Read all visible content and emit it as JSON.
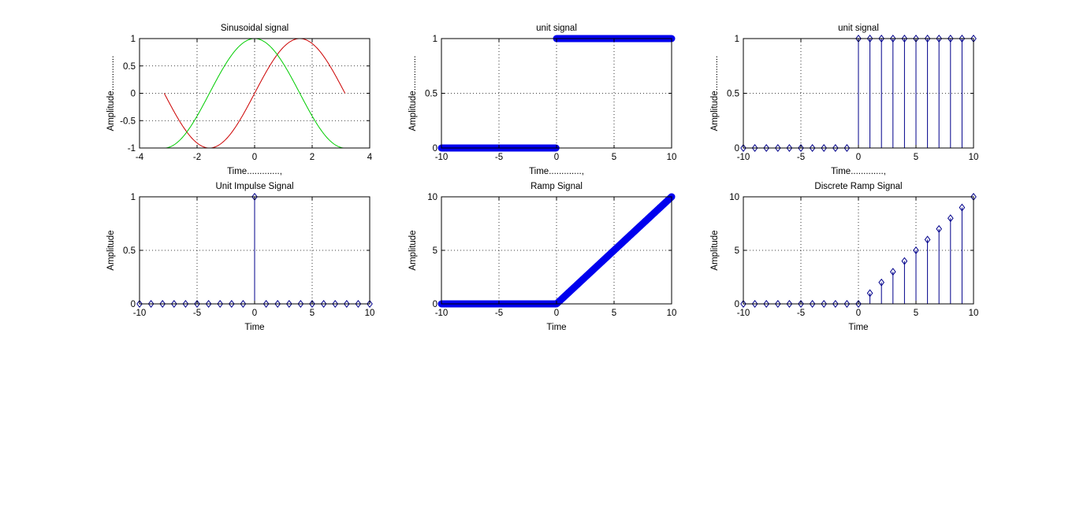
{
  "figure": {
    "background": "#ffffff",
    "axis_color": "#000000",
    "grid_color": "#000000"
  },
  "chart_data": [
    {
      "type": "line",
      "title": "Sinusoidal signal",
      "xlabel": "Time.............,",
      "ylabel": "Amplitude..............",
      "xlim": [
        -4,
        4
      ],
      "ylim": [
        -1,
        1
      ],
      "xticks": [
        -4,
        -2,
        0,
        2,
        4
      ],
      "yticks": [
        -1,
        -0.5,
        0,
        0.5,
        1
      ],
      "grid": true,
      "series": [
        {
          "function": "sin",
          "x_range": [
            -3.1416,
            3.1416
          ],
          "color": "#cc0000",
          "style": "line"
        },
        {
          "function": "cos",
          "x_range": [
            -3.1416,
            3.1416
          ],
          "color": "#00cc00",
          "style": "line"
        }
      ]
    },
    {
      "type": "line",
      "title": "unit signal",
      "xlabel": "Time.............,",
      "ylabel": "Amplitude..............",
      "xlim": [
        -10,
        10
      ],
      "ylim": [
        0,
        1
      ],
      "xticks": [
        -10,
        -5,
        0,
        5,
        10
      ],
      "yticks": [
        0,
        0.5,
        1
      ],
      "grid": true,
      "series": [
        {
          "function": "unit_step",
          "x_range": [
            -10,
            10
          ],
          "color": "#0000ee",
          "style": "dense_markers"
        }
      ]
    },
    {
      "type": "scatter",
      "title": "unit signal",
      "xlabel": "Time.............,",
      "ylabel": "Amplitude..............",
      "xlim": [
        -10,
        10
      ],
      "ylim": [
        0,
        1
      ],
      "xticks": [
        -10,
        -5,
        0,
        5,
        10
      ],
      "yticks": [
        0,
        0.5,
        1
      ],
      "grid": true,
      "series": [
        {
          "style": "stem",
          "color": "#00008b",
          "x": [
            -10,
            -9,
            -8,
            -7,
            -6,
            -5,
            -4,
            -3,
            -2,
            -1,
            0,
            1,
            2,
            3,
            4,
            5,
            6,
            7,
            8,
            9,
            10
          ],
          "y": [
            0,
            0,
            0,
            0,
            0,
            0,
            0,
            0,
            0,
            0,
            1,
            1,
            1,
            1,
            1,
            1,
            1,
            1,
            1,
            1,
            1
          ]
        }
      ]
    },
    {
      "type": "scatter",
      "title": "Unit Impulse Signal",
      "xlabel": "Time",
      "ylabel": "Amplitude",
      "xlim": [
        -10,
        10
      ],
      "ylim": [
        0,
        1
      ],
      "xticks": [
        -10,
        -5,
        0,
        5,
        10
      ],
      "yticks": [
        0,
        0.5,
        1
      ],
      "grid": true,
      "series": [
        {
          "style": "stem",
          "color": "#00008b",
          "x": [
            -10,
            -9,
            -8,
            -7,
            -6,
            -5,
            -4,
            -3,
            -2,
            -1,
            0,
            1,
            2,
            3,
            4,
            5,
            6,
            7,
            8,
            9,
            10
          ],
          "y": [
            0,
            0,
            0,
            0,
            0,
            0,
            0,
            0,
            0,
            0,
            1,
            0,
            0,
            0,
            0,
            0,
            0,
            0,
            0,
            0,
            0
          ]
        }
      ]
    },
    {
      "type": "line",
      "title": "Ramp Signal",
      "xlabel": "Time",
      "ylabel": "Amplitude",
      "xlim": [
        -10,
        10
      ],
      "ylim": [
        0,
        10
      ],
      "xticks": [
        -10,
        -5,
        0,
        5,
        10
      ],
      "yticks": [
        0,
        5,
        10
      ],
      "grid": true,
      "series": [
        {
          "function": "ramp",
          "x_range": [
            -10,
            10
          ],
          "color": "#0000ee",
          "style": "dense_markers"
        }
      ]
    },
    {
      "type": "scatter",
      "title": "Discrete Ramp Signal",
      "xlabel": "Time",
      "ylabel": "Amplitude",
      "xlim": [
        -10,
        10
      ],
      "ylim": [
        0,
        10
      ],
      "xticks": [
        -10,
        -5,
        0,
        5,
        10
      ],
      "yticks": [
        0,
        5,
        10
      ],
      "grid": true,
      "series": [
        {
          "style": "stem",
          "color": "#00008b",
          "x": [
            -10,
            -9,
            -8,
            -7,
            -6,
            -5,
            -4,
            -3,
            -2,
            -1,
            0,
            1,
            2,
            3,
            4,
            5,
            6,
            7,
            8,
            9,
            10
          ],
          "y": [
            0,
            0,
            0,
            0,
            0,
            0,
            0,
            0,
            0,
            0,
            0,
            1,
            2,
            3,
            4,
            5,
            6,
            7,
            8,
            9,
            10
          ]
        }
      ]
    }
  ]
}
